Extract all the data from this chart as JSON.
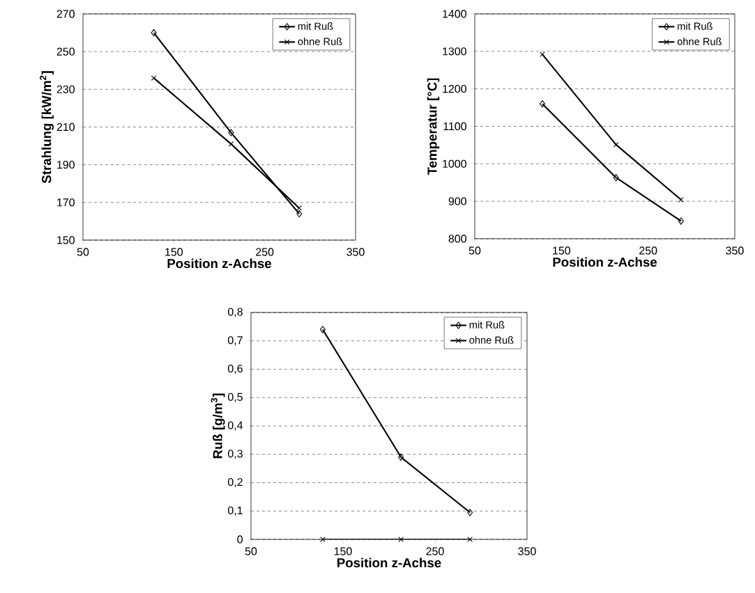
{
  "chart_data": [
    {
      "type": "line",
      "xlabel": "Position z-Achse",
      "ylabel": "Strahlung [kW/m$^{2}$]",
      "xlim": [
        50,
        350
      ],
      "xticks": [
        50,
        150,
        250,
        350
      ],
      "ylim": [
        150,
        270
      ],
      "yticks": [
        150,
        170,
        190,
        210,
        230,
        250,
        270
      ],
      "grid": "y",
      "legend": "top right",
      "line_style": "solid",
      "series": [
        {
          "name": "mit Ruß",
          "color": "#000000",
          "marker": "diamond",
          "x": [
            128,
            213,
            288
          ],
          "values": [
            260,
            207,
            164
          ]
        },
        {
          "name": "ohne Ruß",
          "color": "#000000",
          "marker": "cross",
          "x": [
            128,
            213,
            288
          ],
          "values": [
            236,
            201,
            167
          ]
        }
      ]
    },
    {
      "type": "line",
      "xlabel": "Position z-Achse",
      "ylabel": "Temperatur [°C]",
      "xlim": [
        50,
        350
      ],
      "xticks": [
        50,
        150,
        250,
        350
      ],
      "ylim": [
        800,
        1400
      ],
      "yticks": [
        800,
        900,
        1000,
        1100,
        1200,
        1300,
        1400
      ],
      "grid": "y",
      "legend": "top right",
      "line_style": "solid",
      "series": [
        {
          "name": "mit Ruß",
          "color": "#000000",
          "marker": "diamond",
          "x": [
            128,
            213,
            288
          ],
          "values": [
            1160,
            963,
            847
          ]
        },
        {
          "name": "ohne Ruß",
          "color": "#000000",
          "marker": "cross",
          "x": [
            128,
            213,
            288
          ],
          "values": [
            1292,
            1051,
            904
          ]
        }
      ]
    },
    {
      "type": "line",
      "xlabel": "Position z-Achse",
      "ylabel": "Ruß [g/m$^{3}$]",
      "xlim": [
        50,
        350
      ],
      "xticks": [
        50,
        150,
        250,
        350
      ],
      "ylim": [
        0,
        0.8
      ],
      "yticks": [
        0,
        {
          "value": 0.1,
          "label": "0,1"
        },
        {
          "value": 0.2,
          "label": "0,2"
        },
        {
          "value": 0.3,
          "label": "0,3"
        },
        {
          "value": 0.4,
          "label": "0,4"
        },
        {
          "value": 0.5,
          "label": "0,5"
        },
        {
          "value": 0.6,
          "label": "0,6"
        },
        {
          "value": 0.7,
          "label": "0,7"
        },
        {
          "value": 0.8,
          "label": "0,8"
        }
      ],
      "grid": "y",
      "legend": "top right",
      "line_style": "solid",
      "series": [
        {
          "name": "mit Ruß",
          "color": "#000000",
          "marker": "diamond",
          "x": [
            128,
            213,
            288
          ],
          "values": [
            0.74,
            0.29,
            0.095
          ]
        },
        {
          "name": "ohne Ruß",
          "color": "#000000",
          "marker": "cross",
          "x": [
            128,
            213,
            288
          ],
          "values": [
            0,
            0,
            0
          ]
        }
      ]
    }
  ]
}
